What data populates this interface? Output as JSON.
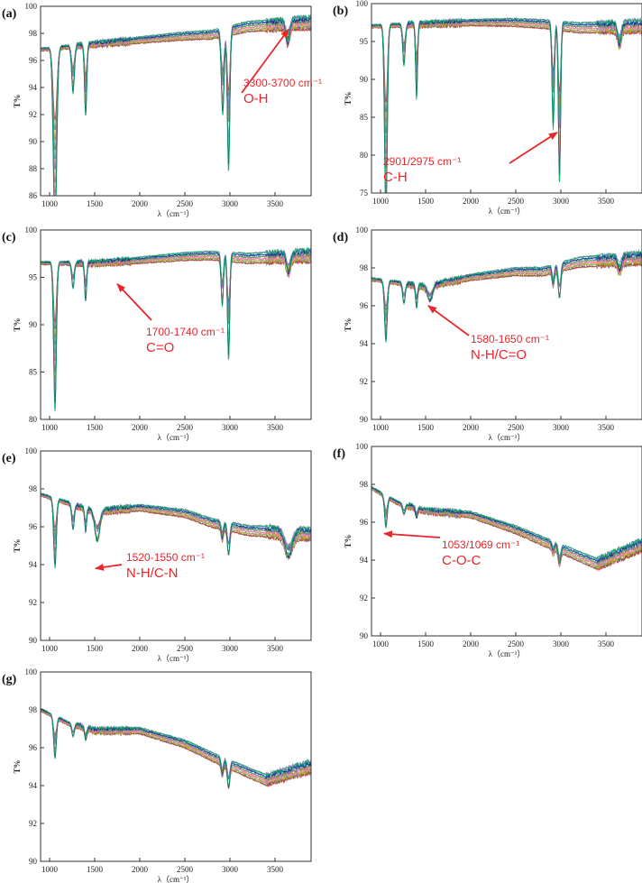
{
  "figure": {
    "annotation_color": "#e8262b",
    "series_palette": [
      "#d62728",
      "#1f77b4",
      "#ff7f0e",
      "#2ca02c",
      "#17becf",
      "#9467bd",
      "#8c564b",
      "#bcbd22",
      "#e377c2",
      "#7f7f7f",
      "#1a1a8c",
      "#00a65a"
    ]
  },
  "chart_data": [
    {
      "type": "line",
      "panel_label": "(a)",
      "xlabel": "λ（cm⁻¹）",
      "ylabel": "T%",
      "xlim": [
        900,
        3900
      ],
      "ylim": [
        86,
        100
      ],
      "x_ticks": [
        1000,
        1500,
        2000,
        2500,
        3000,
        3500
      ],
      "y_ticks": [
        86,
        88,
        90,
        92,
        94,
        96,
        98,
        100
      ],
      "series_count": 12,
      "baseline": [
        [
          900,
          96.8
        ],
        [
          1500,
          97.2
        ],
        [
          2000,
          97.5
        ],
        [
          2500,
          97.8
        ],
        [
          2800,
          97.9
        ],
        [
          3200,
          98.5
        ],
        [
          3900,
          98.8
        ]
      ],
      "peaks": [
        {
          "x": 1060,
          "depth": 9.5,
          "width": 28
        },
        {
          "x": 1260,
          "depth": 2.5,
          "width": 22
        },
        {
          "x": 1400,
          "depth": 3.8,
          "width": 18
        },
        {
          "x": 2920,
          "depth": 4.5,
          "width": 22
        },
        {
          "x": 2985,
          "depth": 7.5,
          "width": 20
        },
        {
          "x": 3640,
          "depth": 1.2,
          "width": 30
        }
      ],
      "annotation": {
        "lines": [
          "3300-3700 cm⁻¹",
          "O-H"
        ],
        "arrow_target": [
          3650,
          98.3
        ]
      }
    },
    {
      "type": "line",
      "panel_label": "(b)",
      "xlabel": "λ（cm⁻¹）",
      "ylabel": "T%",
      "xlim": [
        900,
        3900
      ],
      "ylim": [
        75,
        100
      ],
      "x_ticks": [
        1000,
        1500,
        2000,
        2500,
        3000,
        3500
      ],
      "y_ticks": [
        75,
        80,
        85,
        90,
        95,
        100
      ],
      "series_count": 12,
      "baseline": [
        [
          900,
          97.0
        ],
        [
          1500,
          97.3
        ],
        [
          2000,
          97.5
        ],
        [
          2500,
          97.5
        ],
        [
          2800,
          97.3
        ],
        [
          3200,
          96.8
        ],
        [
          3900,
          97.0
        ]
      ],
      "peaks": [
        {
          "x": 1060,
          "depth": 18,
          "width": 22
        },
        {
          "x": 1260,
          "depth": 4,
          "width": 20
        },
        {
          "x": 1400,
          "depth": 7,
          "width": 16
        },
        {
          "x": 2915,
          "depth": 10,
          "width": 18
        },
        {
          "x": 2985,
          "depth": 15,
          "width": 18
        },
        {
          "x": 3650,
          "depth": 2,
          "width": 30
        }
      ],
      "annotation": {
        "lines": [
          "2901/2975 cm⁻¹",
          "C-H"
        ],
        "arrow_target": [
          2960,
          83
        ]
      }
    },
    {
      "type": "line",
      "panel_label": "(c)",
      "xlabel": "λ（cm⁻¹）",
      "ylabel": "T%",
      "xlim": [
        900,
        3900
      ],
      "ylim": [
        80,
        100
      ],
      "x_ticks": [
        1000,
        1500,
        2000,
        2500,
        3000,
        3500
      ],
      "y_ticks": [
        80,
        85,
        90,
        95,
        100
      ],
      "series_count": 12,
      "baseline": [
        [
          900,
          96.5
        ],
        [
          1500,
          96.5
        ],
        [
          2000,
          96.8
        ],
        [
          2500,
          97.2
        ],
        [
          2800,
          97.3
        ],
        [
          3200,
          97.0
        ],
        [
          3900,
          97.3
        ]
      ],
      "peaks": [
        {
          "x": 1060,
          "depth": 11,
          "width": 22
        },
        {
          "x": 1260,
          "depth": 2,
          "width": 20
        },
        {
          "x": 1400,
          "depth": 3,
          "width": 16
        },
        {
          "x": 2915,
          "depth": 4,
          "width": 18
        },
        {
          "x": 2985,
          "depth": 8,
          "width": 18
        },
        {
          "x": 3650,
          "depth": 1.5,
          "width": 30
        }
      ],
      "annotation": {
        "lines": [
          "1700-1740 cm⁻¹",
          "C=O"
        ],
        "arrow_target": [
          1750,
          94.3
        ]
      }
    },
    {
      "type": "line",
      "panel_label": "(d)",
      "xlabel": "λ（cm⁻¹）",
      "ylabel": "T%",
      "xlim": [
        900,
        3900
      ],
      "ylim": [
        90,
        100
      ],
      "x_ticks": [
        1000,
        1500,
        2000,
        2500,
        3000,
        3500
      ],
      "y_ticks": [
        90,
        92,
        94,
        96,
        98,
        100
      ],
      "series_count": 12,
      "baseline": [
        [
          900,
          97.4
        ],
        [
          1500,
          97.0
        ],
        [
          2000,
          97.5
        ],
        [
          2500,
          97.8
        ],
        [
          2800,
          97.8
        ],
        [
          3200,
          98.3
        ],
        [
          3900,
          98.5
        ]
      ],
      "peaks": [
        {
          "x": 1060,
          "depth": 2.3,
          "width": 22
        },
        {
          "x": 1260,
          "depth": 0.8,
          "width": 20
        },
        {
          "x": 1400,
          "depth": 0.9,
          "width": 16
        },
        {
          "x": 1550,
          "depth": 0.6,
          "width": 40
        },
        {
          "x": 2915,
          "depth": 0.7,
          "width": 18
        },
        {
          "x": 2985,
          "depth": 1.3,
          "width": 20
        },
        {
          "x": 3650,
          "depth": 0.5,
          "width": 30
        }
      ],
      "annotation": {
        "lines": [
          "1580-1650 cm⁻¹",
          "N-H/C=O"
        ],
        "arrow_target": [
          1530,
          96.0
        ]
      }
    },
    {
      "type": "line",
      "panel_label": "(e)",
      "xlabel": "λ（cm⁻¹）",
      "ylabel": "T%",
      "xlim": [
        900,
        3900
      ],
      "ylim": [
        90,
        100
      ],
      "x_ticks": [
        1000,
        1500,
        2000,
        2500,
        3000,
        3500
      ],
      "y_ticks": [
        90,
        92,
        94,
        96,
        98,
        100
      ],
      "series_count": 12,
      "baseline": [
        [
          900,
          97.7
        ],
        [
          1500,
          96.8
        ],
        [
          2000,
          97.0
        ],
        [
          2500,
          96.7
        ],
        [
          2800,
          96.2
        ],
        [
          3200,
          95.8
        ],
        [
          3900,
          95.6
        ]
      ],
      "peaks": [
        {
          "x": 1060,
          "depth": 2.6,
          "width": 22
        },
        {
          "x": 1260,
          "depth": 1.0,
          "width": 20
        },
        {
          "x": 1400,
          "depth": 0.9,
          "width": 16
        },
        {
          "x": 1530,
          "depth": 1.2,
          "width": 40
        },
        {
          "x": 2915,
          "depth": 0.6,
          "width": 18
        },
        {
          "x": 2985,
          "depth": 1.2,
          "width": 20
        },
        {
          "x": 3650,
          "depth": 1.0,
          "width": 60
        }
      ],
      "annotation": {
        "lines": [
          "1520-1550 cm⁻¹",
          "N-H/C-N"
        ],
        "arrow_target": [
          1510,
          93.8
        ]
      }
    },
    {
      "type": "line",
      "panel_label": "(f)",
      "xlabel": "λ（cm⁻¹）",
      "ylabel": "T%",
      "xlim": [
        900,
        3900
      ],
      "ylim": [
        90,
        100
      ],
      "x_ticks": [
        1000,
        1500,
        2000,
        2500,
        3000,
        3500
      ],
      "y_ticks": [
        90,
        92,
        94,
        96,
        98,
        100
      ],
      "series_count": 12,
      "baseline": [
        [
          900,
          97.8
        ],
        [
          1200,
          97.0
        ],
        [
          1500,
          96.6
        ],
        [
          2000,
          96.4
        ],
        [
          2500,
          95.6
        ],
        [
          2900,
          94.8
        ],
        [
          3400,
          93.8
        ],
        [
          3900,
          94.8
        ]
      ],
      "peaks": [
        {
          "x": 1060,
          "depth": 1.2,
          "width": 22
        },
        {
          "x": 1260,
          "depth": 0.4,
          "width": 20
        },
        {
          "x": 1400,
          "depth": 0.4,
          "width": 16
        },
        {
          "x": 2915,
          "depth": 0.3,
          "width": 18
        },
        {
          "x": 2985,
          "depth": 0.7,
          "width": 20
        }
      ],
      "annotation": {
        "lines": [
          "1053/1069 cm⁻¹",
          "C-O-C"
        ],
        "arrow_target": [
          1040,
          95.4
        ]
      }
    },
    {
      "type": "line",
      "panel_label": "(g)",
      "xlabel": "λ（cm⁻¹）",
      "ylabel": "T%",
      "xlim": [
        900,
        3900
      ],
      "ylim": [
        90,
        100
      ],
      "x_ticks": [
        1000,
        1500,
        2000,
        2500,
        3000,
        3500
      ],
      "y_ticks": [
        90,
        92,
        94,
        96,
        98,
        100
      ],
      "series_count": 12,
      "baseline": [
        [
          900,
          98.0
        ],
        [
          1200,
          97.3
        ],
        [
          1500,
          96.9
        ],
        [
          2000,
          96.9
        ],
        [
          2500,
          96.2
        ],
        [
          2900,
          95.3
        ],
        [
          3400,
          94.3
        ],
        [
          3900,
          95.0
        ]
      ],
      "peaks": [
        {
          "x": 1060,
          "depth": 1.6,
          "width": 22
        },
        {
          "x": 1260,
          "depth": 0.5,
          "width": 20
        },
        {
          "x": 1400,
          "depth": 0.5,
          "width": 16
        },
        {
          "x": 2915,
          "depth": 0.6,
          "width": 18
        },
        {
          "x": 2985,
          "depth": 1.0,
          "width": 20
        }
      ],
      "annotation": null
    }
  ]
}
